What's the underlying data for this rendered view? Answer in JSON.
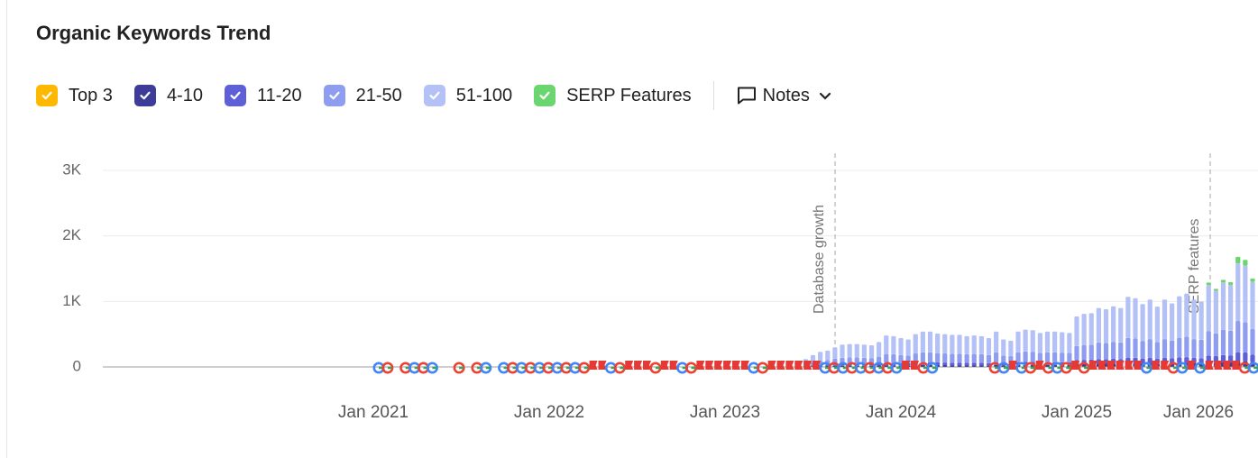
{
  "chart_data": {
    "type": "stacked_bar",
    "title": "Organic Keywords Trend",
    "categories": [
      "Jan 2021",
      null,
      null,
      null,
      null,
      null,
      null,
      null,
      null,
      null,
      null,
      null,
      null,
      null,
      null,
      null,
      null,
      null,
      null,
      null,
      null,
      null,
      null,
      null,
      "Jan 2022",
      null,
      null,
      null,
      null,
      null,
      null,
      null,
      null,
      null,
      null,
      null,
      null,
      null,
      null,
      null,
      null,
      null,
      null,
      null,
      null,
      null,
      null,
      null,
      "Jan 2023",
      null,
      null,
      null,
      null,
      null,
      null,
      null,
      null,
      null,
      null,
      null,
      null,
      null,
      null,
      null,
      null,
      null,
      null,
      null,
      null,
      null,
      null,
      null,
      "Jan 2024",
      null,
      null,
      null,
      null,
      null,
      null,
      null,
      null,
      null,
      null,
      null,
      null,
      null,
      null,
      null,
      null,
      null,
      null,
      null,
      null,
      null,
      null,
      null,
      "Jan 2025",
      null,
      null,
      null,
      null,
      null,
      null,
      null,
      null,
      null,
      null,
      null,
      null,
      null,
      null,
      null,
      null,
      "Jan 2026",
      null,
      null,
      null,
      null,
      null,
      null,
      null
    ],
    "series": [
      {
        "name": "Top 3",
        "color": "#ffb800",
        "values": [
          null,
          null,
          null,
          null,
          null,
          null,
          null,
          null,
          null,
          null,
          null,
          null,
          null,
          null,
          null,
          null,
          null,
          null,
          null,
          null,
          null,
          null,
          null,
          null,
          null,
          null,
          null,
          null,
          null,
          null,
          null,
          null,
          null,
          null,
          null,
          null,
          null,
          null,
          null,
          null,
          null,
          null,
          null,
          null,
          null,
          null,
          null,
          null,
          null,
          null,
          null,
          null,
          null,
          null,
          null,
          null,
          null,
          null,
          null,
          2,
          2,
          2,
          2,
          2,
          2,
          2,
          2,
          2,
          2,
          2,
          2,
          2,
          2,
          2,
          2,
          2,
          2,
          2,
          2,
          2,
          2,
          2,
          2,
          2,
          2,
          2,
          2,
          2,
          2,
          2,
          2,
          2,
          2,
          2,
          2,
          2,
          4,
          4,
          4,
          4,
          4,
          4,
          4,
          4,
          4,
          4,
          4,
          4,
          4,
          4,
          4,
          4,
          4,
          4,
          4,
          4,
          4,
          4,
          4,
          4,
          4
        ]
      },
      {
        "name": "4-10",
        "color": "#3d3c99",
        "values": [
          null,
          null,
          null,
          null,
          null,
          null,
          null,
          null,
          null,
          null,
          null,
          null,
          null,
          null,
          null,
          null,
          null,
          null,
          null,
          null,
          null,
          null,
          null,
          null,
          null,
          null,
          null,
          null,
          null,
          null,
          null,
          null,
          null,
          null,
          null,
          null,
          null,
          null,
          null,
          null,
          null,
          null,
          null,
          null,
          null,
          null,
          null,
          null,
          null,
          null,
          null,
          null,
          null,
          null,
          null,
          null,
          null,
          null,
          null,
          5,
          8,
          10,
          12,
          14,
          16,
          17,
          17,
          16,
          16,
          18,
          24,
          23,
          22,
          21,
          25,
          27,
          27,
          25,
          25,
          24,
          24,
          23,
          24,
          23,
          22,
          27,
          21,
          20,
          27,
          28,
          28,
          26,
          27,
          27,
          26,
          26,
          38,
          40,
          41,
          45,
          44,
          46,
          45,
          53,
          52,
          48,
          51,
          46,
          51,
          48,
          54,
          56,
          51,
          50,
          66,
          62,
          69,
          67,
          85,
          83,
          70
        ]
      },
      {
        "name": "11-20",
        "color": "#5f5fd8",
        "values": [
          null,
          null,
          null,
          null,
          null,
          null,
          null,
          null,
          null,
          null,
          null,
          null,
          null,
          null,
          null,
          null,
          null,
          null,
          null,
          null,
          null,
          null,
          null,
          null,
          null,
          null,
          null,
          null,
          null,
          null,
          null,
          null,
          null,
          null,
          null,
          null,
          null,
          null,
          null,
          null,
          null,
          null,
          null,
          null,
          null,
          null,
          null,
          null,
          null,
          null,
          null,
          null,
          null,
          null,
          null,
          null,
          null,
          null,
          null,
          8,
          14,
          18,
          20,
          24,
          27,
          28,
          28,
          27,
          26,
          30,
          38,
          38,
          35,
          34,
          40,
          43,
          43,
          41,
          40,
          39,
          39,
          38,
          38,
          38,
          35,
          43,
          34,
          32,
          43,
          46,
          45,
          42,
          43,
          43,
          42,
          42,
          62,
          65,
          66,
          72,
          70,
          74,
          72,
          86,
          84,
          77,
          82,
          74,
          82,
          78,
          86,
          90,
          82,
          80,
          106,
          99,
          110,
          107,
          136,
          133,
          112
        ]
      },
      {
        "name": "21-50",
        "color": "#8e9df0",
        "values": [
          null,
          null,
          null,
          null,
          null,
          null,
          null,
          null,
          null,
          null,
          null,
          null,
          null,
          null,
          null,
          null,
          null,
          null,
          null,
          null,
          null,
          null,
          null,
          null,
          null,
          null,
          null,
          null,
          null,
          null,
          null,
          null,
          null,
          null,
          null,
          null,
          null,
          null,
          null,
          null,
          null,
          null,
          null,
          null,
          null,
          null,
          null,
          null,
          null,
          null,
          null,
          null,
          null,
          null,
          null,
          null,
          null,
          null,
          null,
          30,
          50,
          65,
          70,
          85,
          95,
          98,
          98,
          95,
          92,
          106,
          134,
          132,
          123,
          118,
          140,
          151,
          151,
          143,
          140,
          137,
          137,
          132,
          134,
          132,
          123,
          151,
          118,
          112,
          151,
          160,
          157,
          146,
          151,
          151,
          148,
          146,
          216,
          227,
          230,
          252,
          246,
          260,
          252,
          300,
          294,
          269,
          288,
          258,
          288,
          272,
          302,
          314,
          288,
          280,
          372,
          347,
          386,
          375,
          476,
          465,
          392
        ]
      },
      {
        "name": "51-100",
        "color": "#b4c1f7",
        "values": [
          null,
          null,
          null,
          null,
          null,
          null,
          null,
          null,
          null,
          null,
          null,
          null,
          null,
          null,
          null,
          null,
          null,
          null,
          null,
          null,
          null,
          null,
          null,
          null,
          null,
          null,
          null,
          null,
          null,
          null,
          null,
          null,
          null,
          null,
          null,
          null,
          null,
          null,
          null,
          null,
          null,
          null,
          null,
          null,
          null,
          null,
          null,
          null,
          null,
          null,
          null,
          null,
          null,
          null,
          null,
          null,
          null,
          null,
          null,
          75,
          106,
          135,
          146,
          175,
          200,
          205,
          205,
          200,
          194,
          224,
          282,
          275,
          258,
          245,
          293,
          317,
          317,
          299,
          293,
          288,
          288,
          275,
          282,
          275,
          258,
          317,
          245,
          234,
          317,
          334,
          328,
          304,
          317,
          317,
          312,
          304,
          450,
          474,
          479,
          527,
          516,
          542,
          527,
          627,
          616,
          562,
          603,
          538,
          603,
          568,
          632,
          656,
          603,
          586,
          700,
          650,
          720,
          700,
          880,
          860,
          720
        ]
      },
      {
        "name": "SERP Features",
        "color": "#6bd56f",
        "values": [
          null,
          null,
          null,
          null,
          null,
          null,
          null,
          null,
          null,
          null,
          null,
          null,
          null,
          null,
          null,
          null,
          null,
          null,
          null,
          null,
          null,
          null,
          null,
          null,
          null,
          null,
          null,
          null,
          null,
          null,
          null,
          null,
          null,
          null,
          null,
          null,
          null,
          null,
          null,
          null,
          null,
          null,
          null,
          null,
          null,
          null,
          null,
          null,
          null,
          null,
          null,
          null,
          null,
          null,
          null,
          null,
          null,
          null,
          null,
          0,
          0,
          0,
          0,
          0,
          0,
          0,
          0,
          0,
          0,
          0,
          0,
          0,
          0,
          0,
          0,
          0,
          0,
          0,
          0,
          0,
          0,
          0,
          0,
          0,
          0,
          0,
          0,
          0,
          0,
          0,
          0,
          0,
          0,
          0,
          0,
          0,
          0,
          0,
          0,
          0,
          0,
          0,
          0,
          0,
          0,
          0,
          0,
          0,
          0,
          0,
          0,
          0,
          0,
          0,
          40,
          30,
          40,
          40,
          100,
          90,
          50
        ]
      }
    ],
    "ylim": [
      0,
      3000
    ],
    "yticks": [
      0,
      {
        "value": 1000,
        "label": "1K"
      },
      {
        "value": 2000,
        "label": "2K"
      },
      {
        "value": 3000,
        "label": "3K"
      }
    ],
    "grid": true,
    "annotations": [
      "Database growth",
      "SERP features"
    ],
    "notes": "Notes"
  }
}
